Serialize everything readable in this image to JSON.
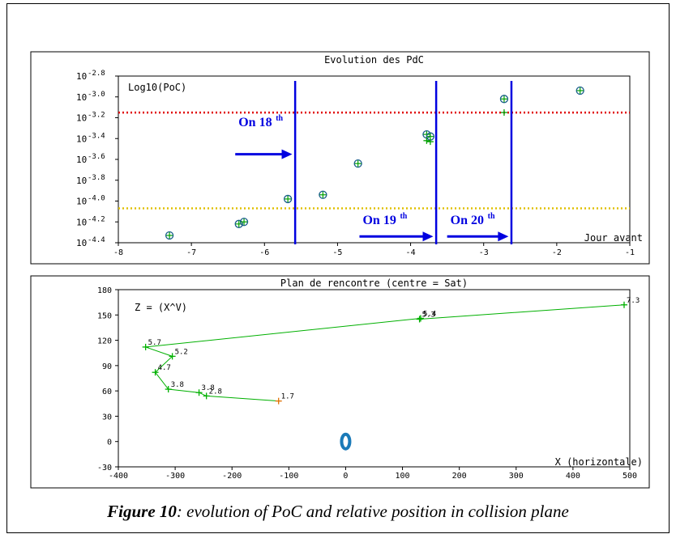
{
  "colors": {
    "marker": "#00a000",
    "circle": "#1a5e8c",
    "track": "#00b000",
    "threshold_red": "#e00000",
    "threshold_yellow": "#e0c000",
    "arrow": "#0000e0",
    "sat": "#1a7ab8",
    "last_point": "#e07000"
  },
  "caption": {
    "figure_label": "Figure 10",
    "text": ": evolution of PoC and relative position in collision plane"
  },
  "chart_data": [
    {
      "type": "scatter",
      "title": "Evolution des PdC",
      "ylabel": "Log10(PoC)",
      "xlabel": "Jour avant",
      "xlim": [
        -8,
        -1
      ],
      "ylim": [
        -4.4,
        -2.8
      ],
      "log_scale_y": true,
      "x_ticks": [
        "-8",
        "-7",
        "-6",
        "-5",
        "-4",
        "-3",
        "-2",
        "-1"
      ],
      "y_ticks": [
        {
          "v": -4.4,
          "base": "10",
          "exp": "-4.4"
        },
        {
          "v": -4.2,
          "base": "10",
          "exp": "-4.2"
        },
        {
          "v": -4.0,
          "base": "10",
          "exp": "-4.0"
        },
        {
          "v": -3.8,
          "base": "10",
          "exp": "-3.8"
        },
        {
          "v": -3.6,
          "base": "10",
          "exp": "-3.6"
        },
        {
          "v": -3.4,
          "base": "10",
          "exp": "-3.4"
        },
        {
          "v": -3.2,
          "base": "10",
          "exp": "-3.2"
        },
        {
          "v": -3.0,
          "base": "10",
          "exp": "-3.0"
        },
        {
          "v": -2.8,
          "base": "10",
          "exp": "-2.8"
        }
      ],
      "series": [
        {
          "x": [
            -7.3,
            -6.35,
            -6.28,
            -5.68,
            -5.2,
            -4.72,
            -3.78,
            -3.73,
            -2.72,
            -1.68
          ],
          "y": [
            -4.33,
            -4.22,
            -4.2,
            -3.98,
            -3.94,
            -3.64,
            -3.36,
            -3.38,
            -3.02,
            -2.94
          ]
        },
        {
          "x": [
            -7.3,
            -6.35,
            -6.28,
            -5.68,
            -5.2,
            -4.72,
            -3.78,
            -3.73,
            -2.72,
            -1.68
          ],
          "y": [
            -4.33,
            -4.22,
            -4.2,
            -3.98,
            -3.94,
            -3.65,
            -3.42,
            -3.43,
            -3.15,
            -2.94
          ]
        }
      ],
      "thresholds": [
        {
          "y": -3.15,
          "color": "red",
          "style": "dotted"
        },
        {
          "y": -4.07,
          "color": "yellow",
          "style": "dotted"
        }
      ],
      "verticals": [
        -5.58,
        -3.65,
        -2.62
      ],
      "annotations": [
        {
          "label": "On 18",
          "sup": "th",
          "arrow_from": -6.4,
          "arrow_to": -5.62,
          "y": -3.55,
          "text_y": -3.28
        },
        {
          "label": "On 19",
          "sup": "th",
          "arrow_from": -4.7,
          "arrow_to": -3.69,
          "y": -4.34,
          "text_y": -4.22
        },
        {
          "label": "On 20",
          "sup": "th",
          "arrow_from": -3.5,
          "arrow_to": -2.66,
          "y": -4.34,
          "text_y": -4.22
        }
      ]
    },
    {
      "type": "line",
      "title": "Plan de rencontre (centre = Sat)",
      "ylabel": "Z = (X^V)",
      "xlabel": "X (horizontale)",
      "xlim": [
        -400,
        500
      ],
      "ylim": [
        -30,
        180
      ],
      "x_ticks": [
        "-400",
        "-300",
        "-200",
        "-100",
        "0",
        "100",
        "200",
        "300",
        "400",
        "500"
      ],
      "y_ticks": [
        "-30",
        "0",
        "30",
        "60",
        "90",
        "120",
        "150",
        "180"
      ],
      "points": [
        {
          "x": 490,
          "y": 162,
          "label": "7.3"
        },
        {
          "x": 130,
          "y": 145,
          "label": "5.3"
        },
        {
          "x": 132,
          "y": 146,
          "label": "5.4"
        },
        {
          "x": -352,
          "y": 112,
          "label": "5.7"
        },
        {
          "x": -305,
          "y": 101,
          "label": "5.2"
        },
        {
          "x": -335,
          "y": 82,
          "label": "4.7"
        },
        {
          "x": -312,
          "y": 62,
          "label": "3.8"
        },
        {
          "x": -258,
          "y": 58,
          "label": "3.8"
        },
        {
          "x": -245,
          "y": 54,
          "label": "2.8"
        },
        {
          "x": -118,
          "y": 48,
          "label": "1.7"
        }
      ],
      "satellite": {
        "x": 0,
        "y": 0
      }
    }
  ]
}
